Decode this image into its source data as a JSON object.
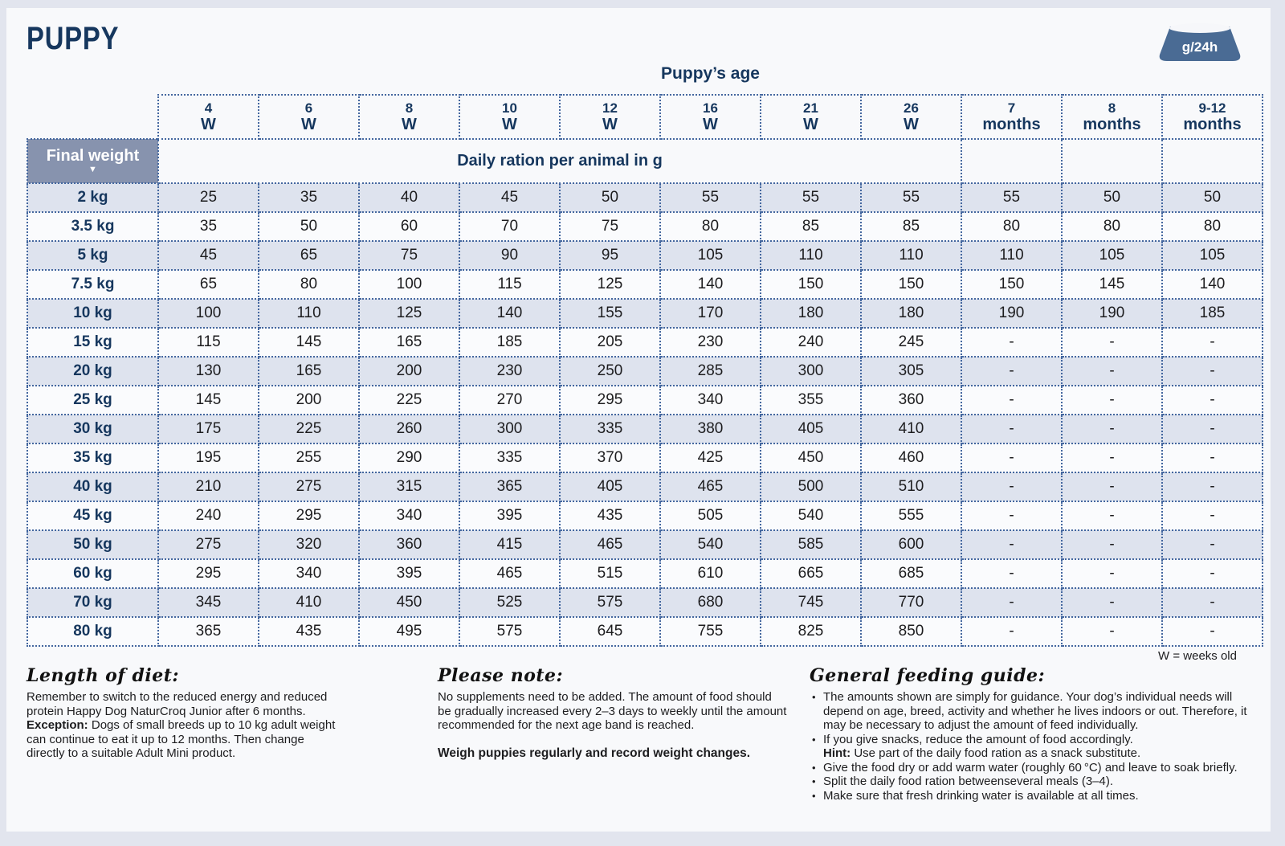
{
  "page": {
    "title": "PUPPY",
    "bowl_label": "g/24h",
    "weeks_note": "W = weeks old"
  },
  "table": {
    "age_header": "Puppy’s age",
    "weight_header": "Final weight",
    "weight_arrow": "▼",
    "ration_header": "Daily ration per animal in g",
    "columns": [
      {
        "value": "4",
        "unit": "W"
      },
      {
        "value": "6",
        "unit": "W"
      },
      {
        "value": "8",
        "unit": "W"
      },
      {
        "value": "10",
        "unit": "W"
      },
      {
        "value": "12",
        "unit": "W"
      },
      {
        "value": "16",
        "unit": "W"
      },
      {
        "value": "21",
        "unit": "W"
      },
      {
        "value": "26",
        "unit": "W"
      },
      {
        "value": "7",
        "unit": "months"
      },
      {
        "value": "8",
        "unit": "months"
      },
      {
        "value": "9-12",
        "unit": "months"
      }
    ],
    "rows": [
      {
        "weight": "2 kg",
        "values": [
          "25",
          "35",
          "40",
          "45",
          "50",
          "55",
          "55",
          "55",
          "55",
          "50",
          "50"
        ]
      },
      {
        "weight": "3.5 kg",
        "values": [
          "35",
          "50",
          "60",
          "70",
          "75",
          "80",
          "85",
          "85",
          "80",
          "80",
          "80"
        ]
      },
      {
        "weight": "5 kg",
        "values": [
          "45",
          "65",
          "75",
          "90",
          "95",
          "105",
          "110",
          "110",
          "110",
          "105",
          "105"
        ]
      },
      {
        "weight": "7.5 kg",
        "values": [
          "65",
          "80",
          "100",
          "115",
          "125",
          "140",
          "150",
          "150",
          "150",
          "145",
          "140"
        ]
      },
      {
        "weight": "10 kg",
        "values": [
          "100",
          "110",
          "125",
          "140",
          "155",
          "170",
          "180",
          "180",
          "190",
          "190",
          "185"
        ]
      },
      {
        "weight": "15 kg",
        "values": [
          "115",
          "145",
          "165",
          "185",
          "205",
          "230",
          "240",
          "245",
          "-",
          "-",
          "-"
        ]
      },
      {
        "weight": "20 kg",
        "values": [
          "130",
          "165",
          "200",
          "230",
          "250",
          "285",
          "300",
          "305",
          "-",
          "-",
          "-"
        ]
      },
      {
        "weight": "25 kg",
        "values": [
          "145",
          "200",
          "225",
          "270",
          "295",
          "340",
          "355",
          "360",
          "-",
          "-",
          "-"
        ]
      },
      {
        "weight": "30 kg",
        "values": [
          "175",
          "225",
          "260",
          "300",
          "335",
          "380",
          "405",
          "410",
          "-",
          "-",
          "-"
        ]
      },
      {
        "weight": "35 kg",
        "values": [
          "195",
          "255",
          "290",
          "335",
          "370",
          "425",
          "450",
          "460",
          "-",
          "-",
          "-"
        ]
      },
      {
        "weight": "40 kg",
        "values": [
          "210",
          "275",
          "315",
          "365",
          "405",
          "465",
          "500",
          "510",
          "-",
          "-",
          "-"
        ]
      },
      {
        "weight": "45 kg",
        "values": [
          "240",
          "295",
          "340",
          "395",
          "435",
          "505",
          "540",
          "555",
          "-",
          "-",
          "-"
        ]
      },
      {
        "weight": "50 kg",
        "values": [
          "275",
          "320",
          "360",
          "415",
          "465",
          "540",
          "585",
          "600",
          "-",
          "-",
          "-"
        ]
      },
      {
        "weight": "60 kg",
        "values": [
          "295",
          "340",
          "395",
          "465",
          "515",
          "610",
          "665",
          "685",
          "-",
          "-",
          "-"
        ]
      },
      {
        "weight": "70 kg",
        "values": [
          "345",
          "410",
          "450",
          "525",
          "575",
          "680",
          "745",
          "770",
          "-",
          "-",
          "-"
        ]
      },
      {
        "weight": "80 kg",
        "values": [
          "365",
          "435",
          "495",
          "575",
          "645",
          "755",
          "825",
          "850",
          "-",
          "-",
          "-"
        ]
      }
    ]
  },
  "notes": {
    "length_of_diet": {
      "heading": "Length of diet:",
      "text1": "Remember to switch to the reduced energy and reduced protein Happy Dog NaturCroq Junior after 6 months.",
      "exception_label": "Exception:",
      "text2": "Dogs of small breeds up to 10 kg adult weight can continue to eat it up to 12 months. Then change directly to a suitable Adult Mini product."
    },
    "please_note": {
      "heading": "Please note:",
      "text": "No supplements need to be added. The amount of food should be gradually increased every 2–3 days to weekly until the amount recommended for the next age band is reached.",
      "weigh_line": "Weigh puppies regularly and record weight changes."
    },
    "general": {
      "heading": "General feeding guide:",
      "bullets": [
        "The amounts shown are simply for guidance. Your dog’s individual needs will depend on age, breed, activity and whether he lives indoors or out. Therefore, it may be necessary to adjust the amount of feed individually.",
        "If you give snacks, reduce the amount of food accordingly.",
        "Give the food dry or add warm water (roughly 60 °C) and leave to soak briefly.",
        "Split the daily food ration betweenseveral meals (3–4).",
        "Make sure that fresh drinking water is available at all times."
      ],
      "hint_label": "Hint:",
      "hint_text": "Use part of the daily food ration as a snack substitute."
    }
  }
}
